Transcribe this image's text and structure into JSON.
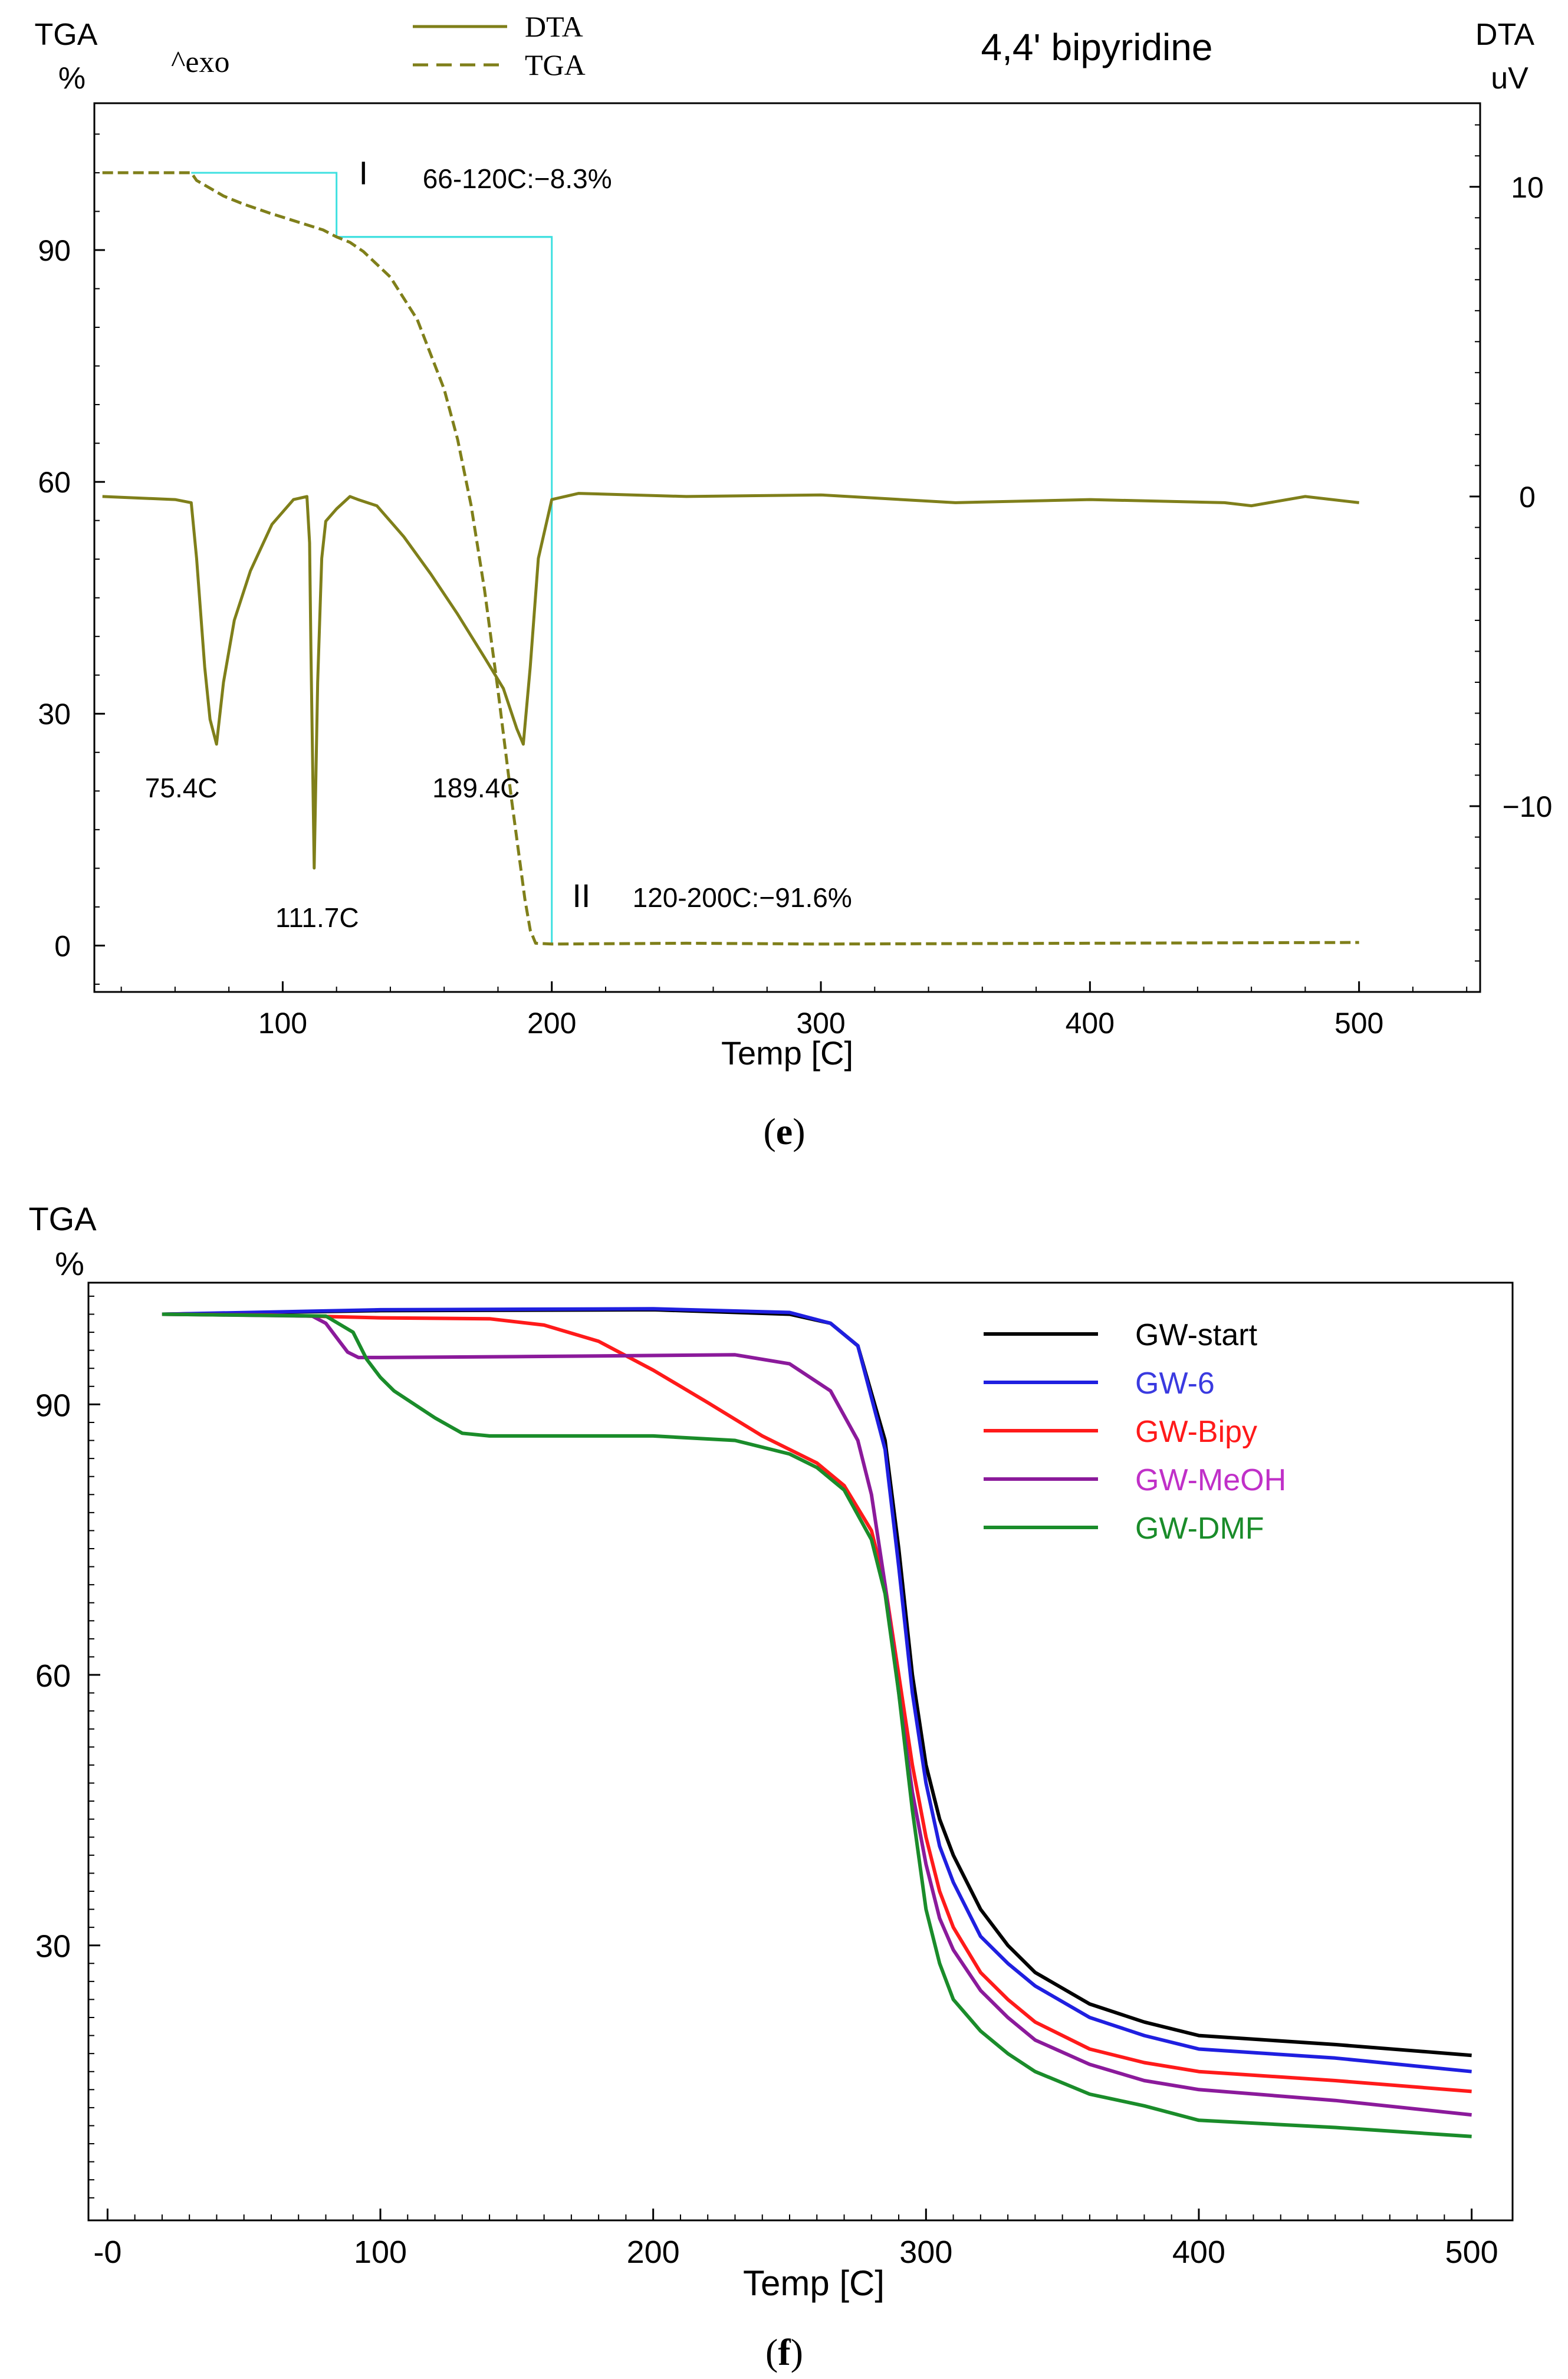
{
  "chart_data": [
    {
      "panel": "(e)",
      "type": "line",
      "title": "4,4' bipyridine",
      "annotation_exo": "^exo",
      "xlabel": "Temp  [C]",
      "xlim": [
        30,
        545
      ],
      "xticks": [
        100,
        200,
        300,
        400,
        500
      ],
      "left_axis": {
        "label_line1": "TGA",
        "label_line2": "%",
        "ylim": [
          -6,
          109
        ],
        "ticks": [
          0,
          30,
          60,
          90
        ]
      },
      "right_axis": {
        "label_line1": "DTA",
        "label_line2": "uV",
        "ylim": [
          -16,
          12.7
        ],
        "ticks": [
          10,
          0,
          -10
        ],
        "tick_labels": [
          "10",
          "0",
          "−10"
        ]
      },
      "legend": [
        {
          "name": "DTA",
          "style": "solid"
        },
        {
          "name": "TGA",
          "style": "dashed"
        }
      ],
      "colors": {
        "curve": "#7f7f1a",
        "step": "#3ee0e0",
        "axis": "#000000"
      },
      "series": [
        {
          "name": "TGA",
          "axis": "left",
          "style": "dashed",
          "x": [
            33,
            50,
            66,
            68,
            72,
            78,
            85,
            95,
            105,
            115,
            120,
            125,
            130,
            140,
            150,
            160,
            165,
            170,
            175,
            180,
            185,
            190,
            192,
            194,
            200,
            250,
            300,
            400,
            500
          ],
          "y": [
            100,
            100,
            100,
            99.0,
            98.2,
            97,
            96,
            94.8,
            93.7,
            92.6,
            91.7,
            91.0,
            89.8,
            86.5,
            81,
            72,
            65.5,
            57,
            46,
            33,
            19,
            6,
            2,
            0.3,
            0.2,
            0.3,
            0.2,
            0.3,
            0.4
          ]
        },
        {
          "name": "DTA",
          "axis": "right",
          "style": "solid",
          "x": [
            33,
            60,
            66,
            68,
            71,
            73,
            75.4,
            78,
            82,
            88,
            96,
            104,
            109,
            110,
            110.5,
            111.7,
            113,
            114.5,
            116,
            120,
            125,
            128,
            135,
            145,
            155,
            165,
            175,
            182,
            187,
            189.4,
            192,
            195,
            200,
            210,
            250,
            300,
            350,
            400,
            450,
            460,
            480,
            500
          ],
          "y": [
            0,
            -0.1,
            -0.2,
            -2,
            -5.5,
            -7.2,
            -8,
            -6,
            -4,
            -2.4,
            -0.9,
            -0.1,
            0,
            -1.5,
            -5,
            -12,
            -6,
            -2,
            -0.8,
            -0.4,
            0,
            -0.1,
            -0.3,
            -1.3,
            -2.5,
            -3.8,
            -5.2,
            -6.2,
            -7.5,
            -8,
            -5.5,
            -2,
            -0.1,
            0.1,
            0,
            0.05,
            -0.2,
            -0.1,
            -0.2,
            -0.3,
            0,
            -0.2
          ]
        }
      ],
      "step_markers": [
        {
          "x_start": 66,
          "x_end": 120,
          "y_from": 100,
          "y_to": 91.7
        },
        {
          "x_start": 120,
          "x_end": 200,
          "y_from": 91.7,
          "y_to": 0.1
        }
      ],
      "peak_labels": [
        {
          "x": 75.4,
          "y_dta": -8,
          "text": "75.4C"
        },
        {
          "x": 111.7,
          "y_dta": -12,
          "text": "111.7C"
        },
        {
          "x": 189.4,
          "y_dta": -8,
          "text": "189.4C"
        }
      ],
      "step_labels": [
        {
          "roman": "I",
          "text": "66-120C:−8.3%"
        },
        {
          "roman": "II",
          "text": "120-200C:−91.6%"
        }
      ]
    },
    {
      "panel": "(f)",
      "type": "line",
      "title": "",
      "xlabel": "Temp [C]",
      "xlim": [
        -7,
        515
      ],
      "xticks": [
        0,
        100,
        200,
        300,
        400,
        500
      ],
      "xtick_labels": [
        "-0",
        "100",
        "200",
        "300",
        "400",
        "500"
      ],
      "left_axis": {
        "label_line1": "TGA",
        "label_line2": "%",
        "ylim": [
          -0.5,
          103.5
        ],
        "ticks": [
          30,
          60,
          90
        ]
      },
      "series": [
        {
          "name": "GW-start",
          "color": "#000000",
          "x": [
            20,
            100,
            200,
            250,
            265,
            275,
            285,
            290,
            295,
            300,
            305,
            310,
            320,
            330,
            340,
            360,
            380,
            400,
            450,
            500
          ],
          "y": [
            100,
            100.4,
            100.5,
            100,
            99,
            96.5,
            86,
            74,
            60,
            50,
            44,
            40,
            34,
            30,
            27,
            23.5,
            21.5,
            20,
            19,
            17.8
          ]
        },
        {
          "name": "GW-6",
          "color": "#1f1fe0",
          "x": [
            20,
            100,
            200,
            250,
            265,
            275,
            285,
            290,
            295,
            300,
            305,
            310,
            320,
            330,
            340,
            360,
            380,
            400,
            450,
            500
          ],
          "y": [
            100,
            100.5,
            100.6,
            100.2,
            99,
            96.5,
            85,
            72,
            58,
            48,
            41,
            37,
            31,
            28,
            25.5,
            22,
            20,
            18.5,
            17.5,
            16
          ]
        },
        {
          "name": "GW-Bipy",
          "color": "#ff1a1a",
          "x": [
            20,
            60,
            100,
            140,
            160,
            180,
            200,
            220,
            240,
            260,
            270,
            280,
            285,
            290,
            295,
            300,
            305,
            310,
            320,
            330,
            340,
            360,
            380,
            400,
            450,
            500
          ],
          "y": [
            100,
            99.9,
            99.6,
            99.5,
            98.8,
            97,
            93.8,
            90.2,
            86.5,
            83.5,
            81,
            76,
            70,
            60,
            50,
            42,
            36,
            32,
            27,
            24,
            21.5,
            18.5,
            17,
            16,
            15,
            13.8
          ]
        },
        {
          "name": "GW-MeOH",
          "color": "#8b1a9b",
          "x": [
            20,
            75,
            80,
            85,
            88,
            92,
            100,
            150,
            230,
            250,
            265,
            275,
            280,
            285,
            290,
            295,
            300,
            305,
            310,
            320,
            330,
            340,
            360,
            380,
            400,
            450,
            500
          ],
          "y": [
            100,
            99.8,
            99,
            97,
            95.8,
            95.2,
            95.2,
            95.3,
            95.5,
            94.5,
            91.5,
            86,
            80,
            70,
            58,
            47,
            39,
            33,
            29.5,
            25,
            22,
            19.5,
            16.8,
            15,
            14,
            12.8,
            11.2
          ]
        },
        {
          "name": "GW-DMF",
          "color": "#1a8c2a",
          "x": [
            20,
            80,
            90,
            95,
            100,
            105,
            110,
            120,
            130,
            140,
            200,
            230,
            250,
            260,
            270,
            280,
            285,
            290,
            295,
            300,
            305,
            310,
            320,
            330,
            340,
            360,
            380,
            400,
            450,
            500
          ],
          "y": [
            100,
            99.8,
            98,
            95,
            93,
            91.5,
            90.5,
            88.5,
            86.8,
            86.5,
            86.5,
            86.0,
            84.5,
            83,
            80.5,
            75,
            69,
            58,
            45,
            34,
            28,
            24,
            20.5,
            18,
            16,
            13.5,
            12.2,
            10.6,
            9.8,
            8.8
          ]
        }
      ]
    }
  ],
  "captions": {
    "e": "e",
    "f": "f"
  }
}
